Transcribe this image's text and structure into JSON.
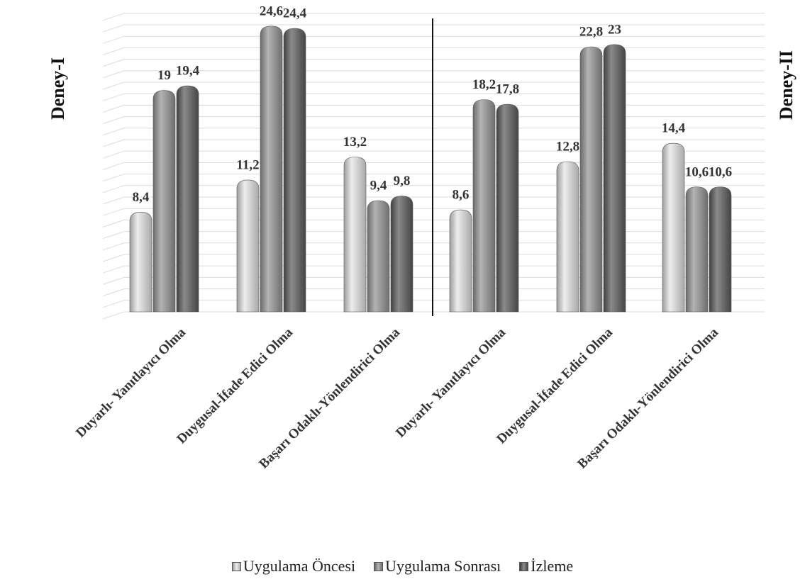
{
  "chart_data": {
    "type": "bar",
    "groups": [
      {
        "label": "Deney-I"
      },
      {
        "label": "Deney-II"
      }
    ],
    "categories": [
      "Duyarlı- Yanıtlayıcı Olma",
      "Duygusal-İfade Edici Olma",
      "Başarı Odaklı-Yönlendirici Olma",
      "Duyarlı- Yanıtlayıcı Olma",
      "Duygusal-İfade Edici Olma",
      "Başarı Odaklı-Yönlendirici Olma"
    ],
    "series": [
      {
        "name": "Uygulama Öncesi",
        "color": "#c8c8c8",
        "values": [
          8.4,
          11.2,
          13.2,
          8.6,
          12.8,
          14.4
        ],
        "labels": [
          "8,4",
          "11,2",
          "13,2",
          "8,6",
          "12,8",
          "14,4"
        ]
      },
      {
        "name": "Uygulama Sonrası",
        "color": "#8e8e8e",
        "values": [
          19,
          24.6,
          9.4,
          18.2,
          22.8,
          10.6
        ],
        "labels": [
          "19",
          "24,6",
          "9,4",
          "18,2",
          "22,8",
          "10,6"
        ]
      },
      {
        "name": "İzleme",
        "color": "#606060",
        "values": [
          19.4,
          24.4,
          9.8,
          17.8,
          23,
          10.6
        ],
        "labels": [
          "19,4",
          "24,4",
          "9,8",
          "17,8",
          "23",
          "10,6"
        ]
      }
    ],
    "ylim": [
      0,
      26
    ],
    "grid": true,
    "legend_position": "bottom"
  }
}
